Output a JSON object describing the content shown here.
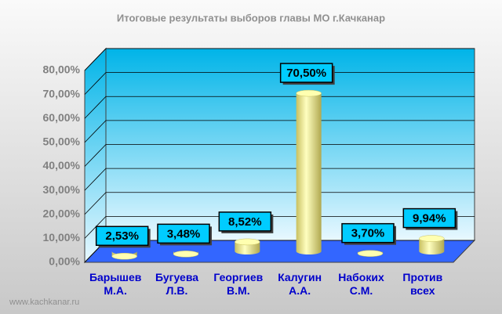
{
  "chart_data": {
    "type": "bar",
    "title": "Итоговые результаты выборов главы МО г.Качканар",
    "categories": [
      "Барышев М.А.",
      "Бугуева Л.В.",
      "Георгиев В.М.",
      "Калугин А.А.",
      "Набоких С.М.",
      "Против всех"
    ],
    "values": [
      2.53,
      3.48,
      8.52,
      70.5,
      3.7,
      9.94
    ],
    "value_labels": [
      "2,53%",
      "3,48%",
      "8,52%",
      "70,50%",
      "3,70%",
      "9,94%"
    ],
    "color": "#ffff99",
    "ylim": [
      0,
      80
    ],
    "yticks": [
      {
        "value": 0,
        "label": "0,00%"
      },
      {
        "value": 10,
        "label": "10,00%"
      },
      {
        "value": 20,
        "label": "20,00%"
      },
      {
        "value": 30,
        "label": "30,00%"
      },
      {
        "value": 40,
        "label": "40,00%"
      },
      {
        "value": 50,
        "label": "50,00%"
      },
      {
        "value": 60,
        "label": "60,00%"
      },
      {
        "value": 70,
        "label": "70,00%"
      },
      {
        "value": 80,
        "label": "80,00%"
      }
    ],
    "grid": true,
    "footer": "www.kachkanar.ru"
  }
}
